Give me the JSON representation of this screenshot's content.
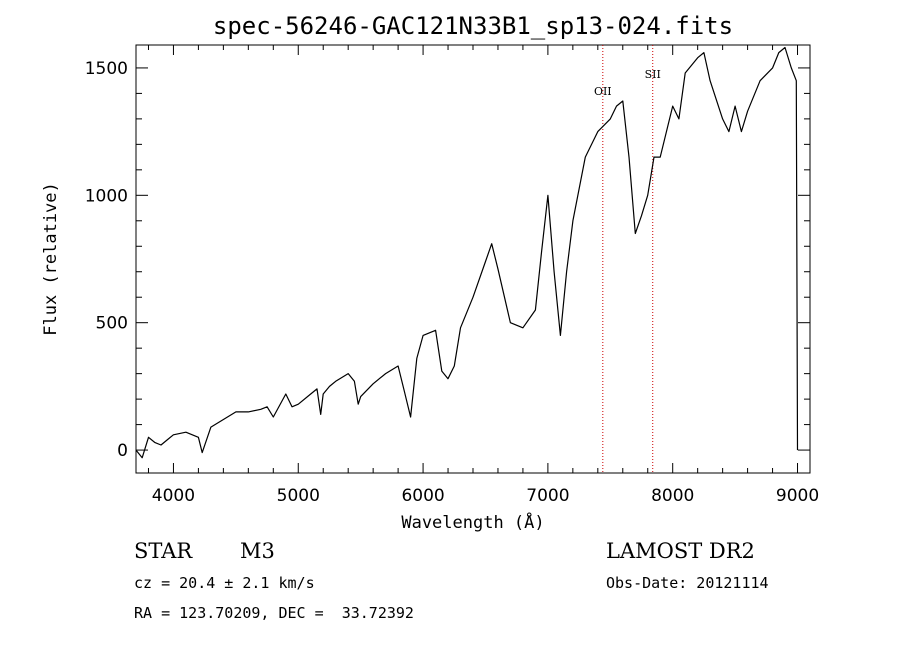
{
  "chart_data": {
    "type": "line",
    "title": "spec-56246-GAC121N33B1_sp13-024.fits",
    "xlabel": "Wavelength (Å)",
    "ylabel": "Flux (relative)",
    "xlim": [
      3700,
      9100
    ],
    "ylim": [
      -90,
      1590
    ],
    "xticks": [
      4000,
      5000,
      6000,
      7000,
      8000,
      9000
    ],
    "yticks": [
      0,
      500,
      1000,
      1500
    ],
    "spectral_lines": [
      {
        "name": "OII",
        "wavelength": 7440
      },
      {
        "name": "SII",
        "wavelength": 7840
      }
    ],
    "series": [
      {
        "name": "flux",
        "x": [
          3700,
          3750,
          3800,
          3850,
          3900,
          3950,
          4000,
          4100,
          4200,
          4230,
          4300,
          4400,
          4500,
          4600,
          4700,
          4750,
          4800,
          4900,
          4950,
          5000,
          5100,
          5150,
          5180,
          5200,
          5250,
          5300,
          5400,
          5450,
          5480,
          5500,
          5600,
          5700,
          5800,
          5850,
          5900,
          5950,
          6000,
          6100,
          6150,
          6200,
          6250,
          6300,
          6400,
          6500,
          6550,
          6600,
          6700,
          6800,
          6900,
          6950,
          7000,
          7050,
          7100,
          7150,
          7200,
          7300,
          7400,
          7500,
          7550,
          7600,
          7650,
          7700,
          7750,
          7800,
          7850,
          7900,
          8000,
          8050,
          8100,
          8200,
          8250,
          8300,
          8400,
          8450,
          8500,
          8550,
          8600,
          8700,
          8800,
          8850,
          8900,
          8950,
          8990,
          9000
        ],
        "y": [
          0,
          -30,
          50,
          30,
          20,
          40,
          60,
          70,
          50,
          -10,
          90,
          120,
          150,
          150,
          160,
          170,
          130,
          220,
          170,
          180,
          220,
          240,
          140,
          220,
          250,
          270,
          300,
          270,
          180,
          210,
          260,
          300,
          330,
          230,
          130,
          360,
          450,
          470,
          310,
          280,
          330,
          480,
          600,
          740,
          810,
          710,
          500,
          480,
          550,
          780,
          1000,
          700,
          450,
          700,
          900,
          1150,
          1250,
          1300,
          1350,
          1370,
          1150,
          850,
          920,
          1000,
          1150,
          1150,
          1350,
          1300,
          1480,
          1540,
          1560,
          1450,
          1300,
          1250,
          1350,
          1250,
          1330,
          1450,
          1500,
          1560,
          1580,
          1500,
          1450,
          0
        ]
      }
    ]
  },
  "info": {
    "object_class": "STAR",
    "subclass": "M3",
    "velocity": "cz = 20.4 ± 2.1 km/s",
    "coordinates": "RA = 123.70209, DEC =  33.72392",
    "survey": "LAMOST DR2",
    "obs_date": "Obs-Date: 20121114"
  },
  "colors": {
    "line": "#000000",
    "marker": "#cc0000"
  }
}
